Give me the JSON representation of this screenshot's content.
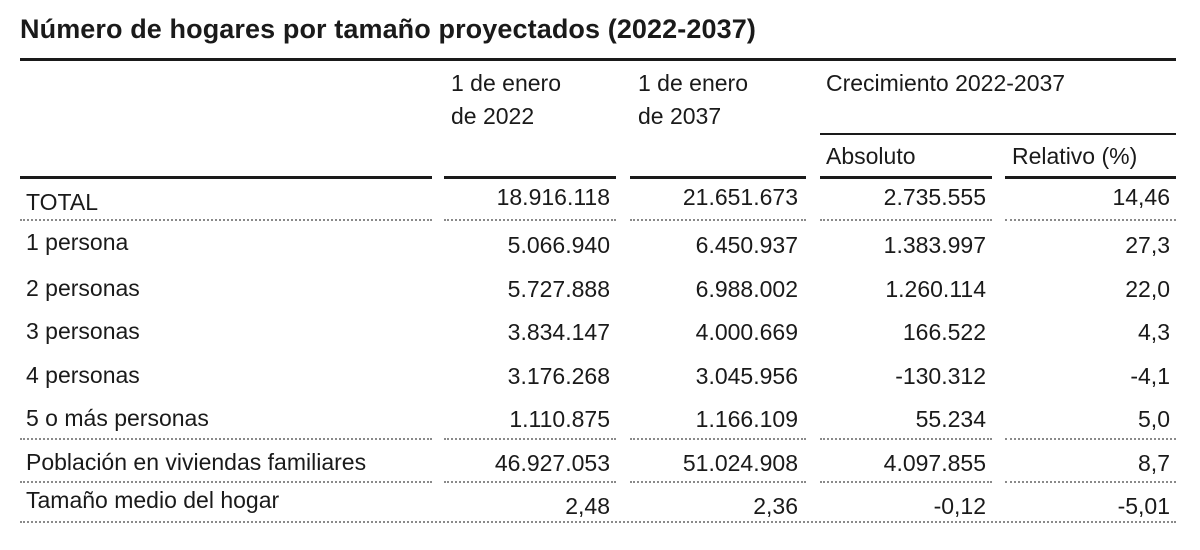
{
  "title": "Número de hogares por tamaño proyectados (2022-2037)",
  "table": {
    "headers": {
      "col1_line1": "1 de enero",
      "col1_line2": "de 2022",
      "col2_line1": "1 de enero",
      "col2_line2": "de 2037",
      "growth_group": "Crecimiento 2022-2037",
      "absolute": "Absoluto",
      "relative": "Relativo (%)"
    },
    "rows": [
      {
        "label": "TOTAL",
        "v2022": "18.916.118",
        "v2037": "21.651.673",
        "abs": "2.735.555",
        "rel": "14,46"
      },
      {
        "label": "1 persona",
        "v2022": "5.066.940",
        "v2037": "6.450.937",
        "abs": "1.383.997",
        "rel": "27,3"
      },
      {
        "label": "2 personas",
        "v2022": "5.727.888",
        "v2037": "6.988.002",
        "abs": "1.260.114",
        "rel": "22,0"
      },
      {
        "label": "3 personas",
        "v2022": "3.834.147",
        "v2037": "4.000.669",
        "abs": "166.522",
        "rel": "4,3"
      },
      {
        "label": "4 personas",
        "v2022": "3.176.268",
        "v2037": "3.045.956",
        "abs": "-130.312",
        "rel": "-4,1"
      },
      {
        "label": "5 o más personas",
        "v2022": "1.110.875",
        "v2037": "1.166.109",
        "abs": "55.234",
        "rel": "5,0"
      },
      {
        "label": "Población en viviendas familiares",
        "v2022": "46.927.053",
        "v2037": "51.024.908",
        "abs": "4.097.855",
        "rel": "8,7"
      },
      {
        "label": "Tamaño medio del hogar",
        "v2022": "2,48",
        "v2037": "2,36",
        "abs": "-0,12",
        "rel": "-5,01"
      }
    ]
  }
}
